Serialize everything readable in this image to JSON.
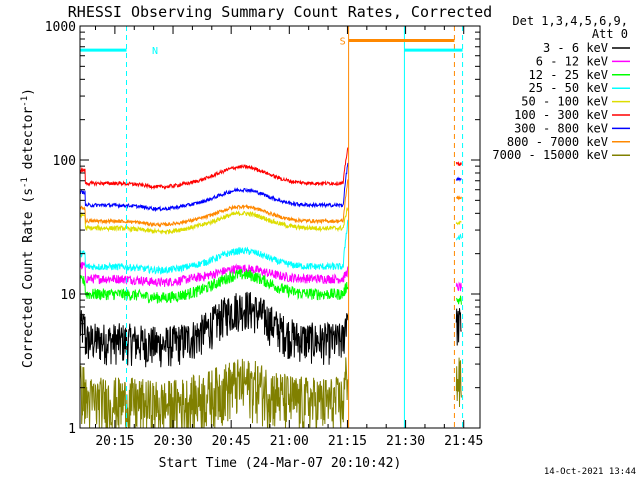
{
  "chart_data": {
    "type": "line",
    "title": "RHESSI Observing Summary Count Rates, Corrected",
    "xlabel": "Start Time (24-Mar-07 20:10:42)",
    "ylabel_parts": [
      "Corrected Count Rate (s",
      "-1",
      " detector",
      "-1",
      ")"
    ],
    "yscale": "log",
    "ylim": [
      1,
      1000
    ],
    "xlim_minutes": [
      20.1,
      21.82
    ],
    "x_ticks": [
      "20:15",
      "20:30",
      "20:45",
      "21:00",
      "21:15",
      "21:30",
      "21:45"
    ],
    "y_ticks": [
      "1",
      "10",
      "100",
      "1000"
    ],
    "legend_header": [
      "Det 1,3,4,5,6,9,",
      "Att 0"
    ],
    "series": [
      {
        "name": "3 - 6 keV",
        "color": "#000000",
        "base": 4.5,
        "bump": 3.5,
        "noise": 0.35,
        "end": 8
      },
      {
        "name": "6 - 12 keV",
        "color": "#ff00ff",
        "base": 13,
        "bump": 2.5,
        "noise": 0.08,
        "end": 15
      },
      {
        "name": "12 - 25 keV",
        "color": "#00ff00",
        "base": 10,
        "bump": 4,
        "noise": 0.1,
        "end": 12
      },
      {
        "name": "25 - 50 keV",
        "color": "#00ffff",
        "base": 16,
        "bump": 5,
        "noise": 0.06,
        "end": 35
      },
      {
        "name": "50 - 100 keV",
        "color": "#dddd00",
        "base": 31,
        "bump": 9,
        "noise": 0.04,
        "end": 45
      },
      {
        "name": "100 - 300 keV",
        "color": "#ff0000",
        "base": 67,
        "bump": 22,
        "noise": 0.03,
        "end": 125
      },
      {
        "name": "300 - 800 keV",
        "color": "#0000ff",
        "base": 46,
        "bump": 14,
        "noise": 0.03,
        "end": 95
      },
      {
        "name": "800 - 7000 keV",
        "color": "#ff8800",
        "base": 35,
        "bump": 10,
        "noise": 0.03,
        "end": 70
      },
      {
        "name": "7000 - 15000 keV",
        "color": "#808000",
        "base": 1.6,
        "bump": 0.6,
        "noise": 0.5,
        "end": 3
      }
    ],
    "flag_bars": [
      {
        "label": "N",
        "color": "#00ffff",
        "x_start": 20.1,
        "x_end": 20.3,
        "level": 660
      },
      {
        "label": "S",
        "color": "#ff8800",
        "x_start": 21.255,
        "x_end": 21.71,
        "level": 780
      },
      {
        "label": "",
        "color": "#00ffff",
        "x_start": 21.495,
        "x_end": 21.745,
        "level": 660
      }
    ],
    "markers": [
      {
        "x": 20.3,
        "color": "#00ffff",
        "style": "dashed"
      },
      {
        "x": 21.255,
        "color": "#ff8800",
        "style": "solid"
      },
      {
        "x": 21.495,
        "color": "#00ffff",
        "style": "solid"
      },
      {
        "x": 21.71,
        "color": "#ff8800",
        "style": "dashed"
      },
      {
        "x": 21.745,
        "color": "#00ffff",
        "style": "dashed"
      }
    ],
    "gaps": [
      {
        "from": 21.255,
        "to": 21.71
      }
    ],
    "timestamp": "14-Oct-2021 13:44"
  }
}
